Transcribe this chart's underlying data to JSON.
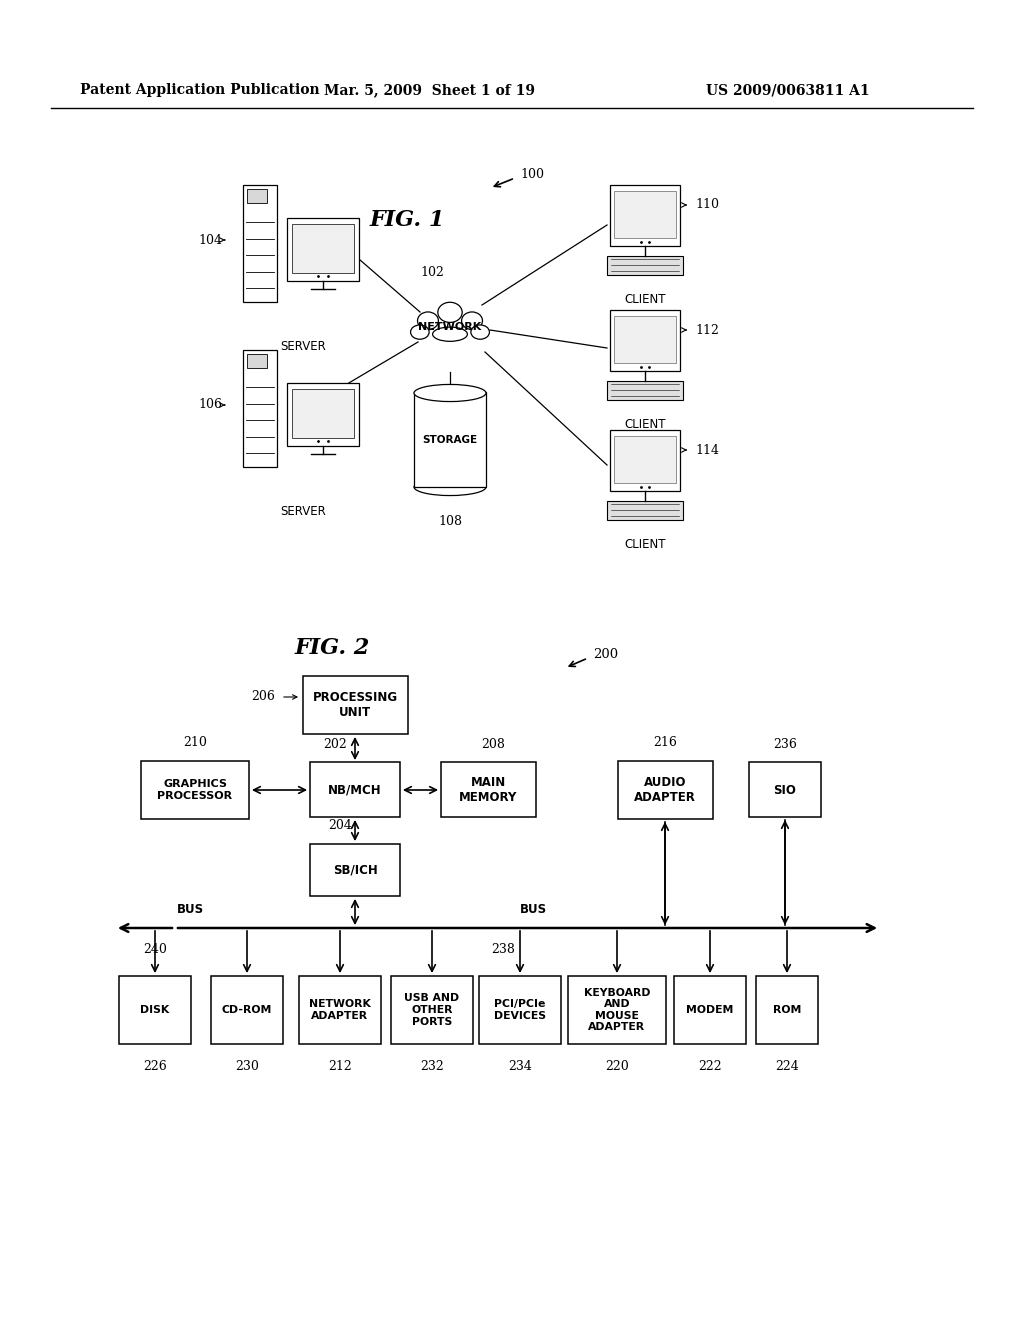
{
  "bg_color": "#ffffff",
  "header_left": "Patent Application Publication",
  "header_mid": "Mar. 5, 2009  Sheet 1 of 19",
  "header_right": "US 2009/0063811 A1"
}
